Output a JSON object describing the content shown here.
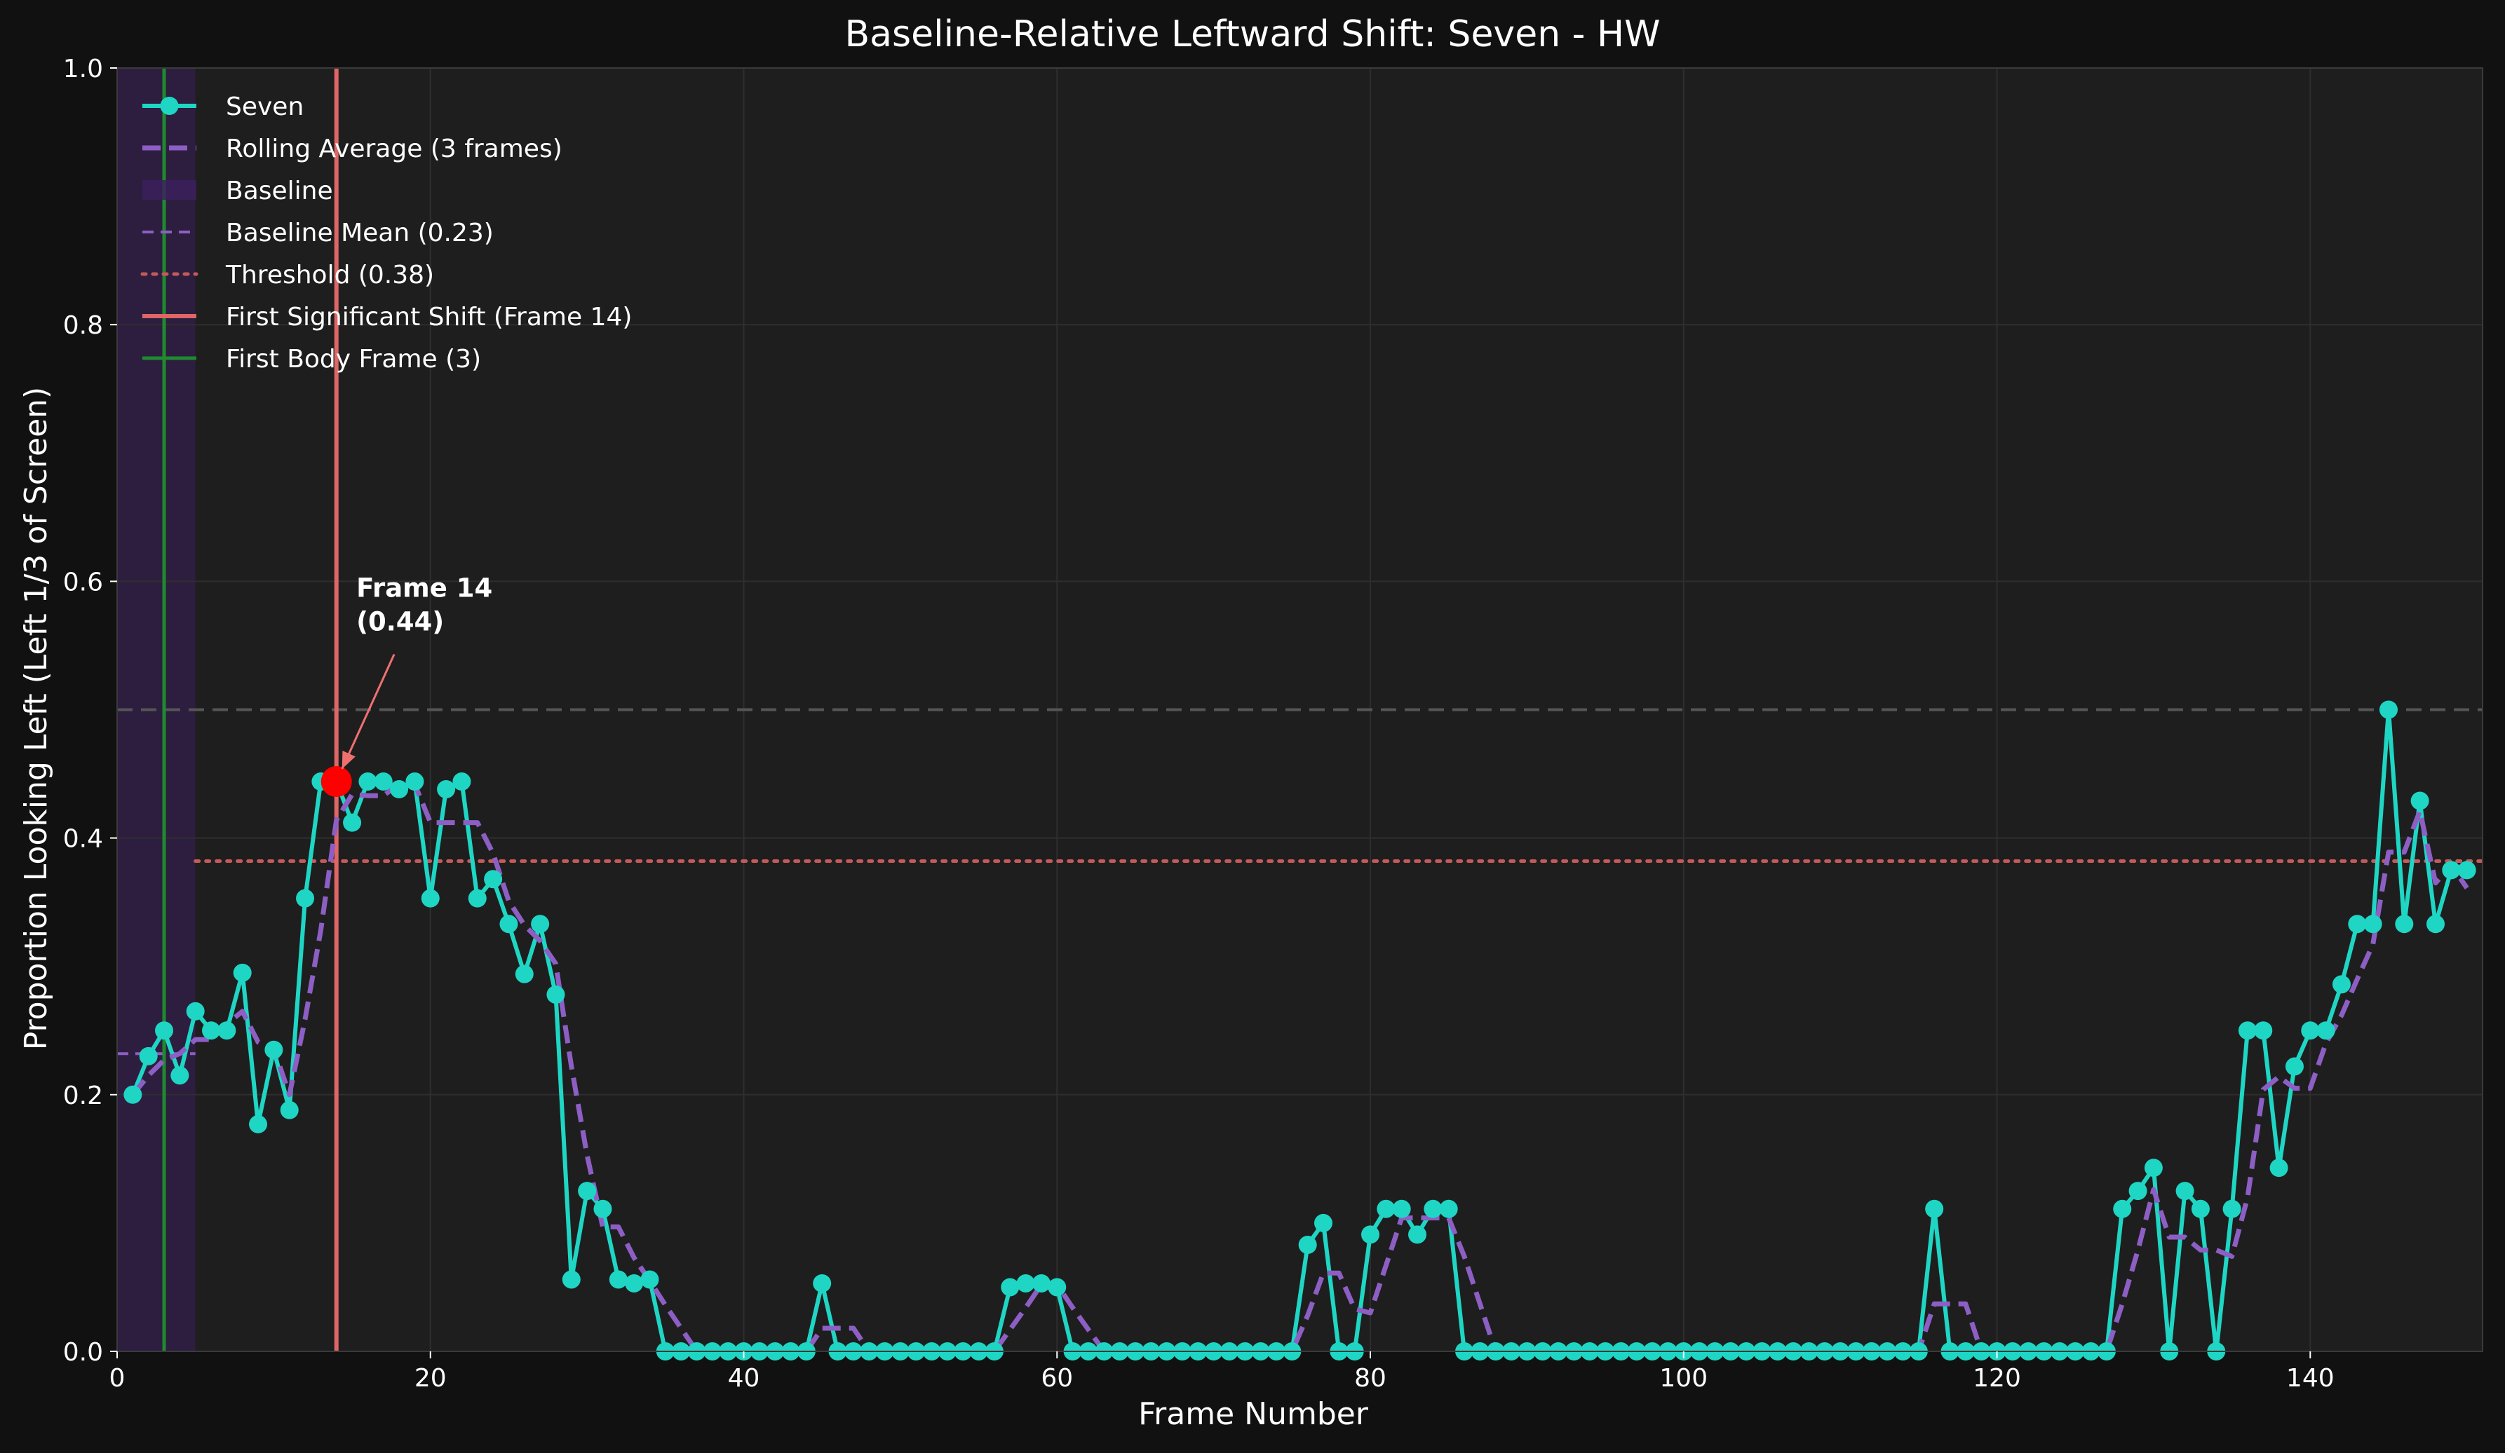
{
  "chart_data": {
    "type": "line",
    "title": "Baseline-Relative Leftward Shift: Seven - HW",
    "xlabel": "Frame Number",
    "ylabel": "Proportion Looking Left (Left 1/3 of Screen)",
    "xlim": [
      0,
      151
    ],
    "ylim": [
      0,
      1.0
    ],
    "xticks": [
      0,
      20,
      40,
      60,
      80,
      100,
      120,
      140
    ],
    "yticks": [
      0.0,
      0.2,
      0.4,
      0.6,
      0.8,
      1.0
    ],
    "x_tick_labels": [
      "0",
      "20",
      "40",
      "60",
      "80",
      "100",
      "120",
      "140"
    ],
    "y_tick_labels": [
      "0.0",
      "0.2",
      "0.4",
      "0.6",
      "0.8",
      "1.0"
    ],
    "grid": true,
    "legend_position": "top-left",
    "x": [
      1,
      2,
      3,
      4,
      5,
      6,
      7,
      8,
      9,
      10,
      11,
      12,
      13,
      14,
      15,
      16,
      17,
      18,
      19,
      20,
      21,
      22,
      23,
      24,
      25,
      26,
      27,
      28,
      29,
      30,
      31,
      32,
      33,
      34,
      35,
      36,
      37,
      38,
      39,
      40,
      41,
      42,
      43,
      44,
      45,
      46,
      47,
      48,
      49,
      50,
      51,
      52,
      53,
      54,
      55,
      56,
      57,
      58,
      59,
      60,
      61,
      62,
      63,
      64,
      65,
      66,
      67,
      68,
      69,
      70,
      71,
      72,
      73,
      74,
      75,
      76,
      77,
      78,
      79,
      80,
      81,
      82,
      83,
      84,
      85,
      86,
      87,
      88,
      89,
      90,
      91,
      92,
      93,
      94,
      95,
      96,
      97,
      98,
      99,
      100,
      101,
      102,
      103,
      104,
      105,
      106,
      107,
      108,
      109,
      110,
      111,
      112,
      113,
      114,
      115,
      116,
      117,
      118,
      119,
      120,
      121,
      122,
      123,
      124,
      125,
      126,
      127,
      128,
      129,
      130,
      131,
      132,
      133,
      134,
      135,
      136,
      137,
      138,
      139,
      140,
      141,
      142,
      143,
      144,
      145,
      146,
      147,
      148,
      149,
      150
    ],
    "series": [
      {
        "name": "Seven",
        "color": "#1fd6c4",
        "style": "solid-markers",
        "values": [
          0.2,
          0.23,
          0.25,
          0.215,
          0.265,
          0.25,
          0.25,
          0.295,
          0.177,
          0.235,
          0.188,
          0.353,
          0.444,
          0.444,
          0.412,
          0.444,
          0.444,
          0.438,
          0.444,
          0.353,
          0.438,
          0.444,
          0.353,
          0.368,
          0.333,
          0.294,
          0.333,
          0.278,
          0.056,
          0.125,
          0.111,
          0.056,
          0.053,
          0.056,
          0,
          0,
          0,
          0,
          0,
          0,
          0,
          0,
          0,
          0,
          0.053,
          0,
          0,
          0,
          0,
          0,
          0,
          0,
          0,
          0,
          0,
          0,
          0.05,
          0.053,
          0.053,
          0.05,
          0,
          0,
          0,
          0,
          0,
          0,
          0,
          0,
          0,
          0,
          0,
          0,
          0,
          0,
          0,
          0.083,
          0.1,
          0,
          0,
          0.091,
          0.111,
          0.111,
          0.091,
          0.111,
          0.111,
          0,
          0,
          0,
          0,
          0,
          0,
          0,
          0,
          0,
          0,
          0,
          0,
          0,
          0,
          0,
          0,
          0,
          0,
          0,
          0,
          0,
          0,
          0,
          0,
          0,
          0,
          0,
          0,
          0,
          0,
          0.111,
          0,
          0,
          0,
          0,
          0,
          0,
          0,
          0,
          0,
          0,
          0,
          0.111,
          0.125,
          0.143,
          0,
          0.125,
          0.111,
          0,
          0.111,
          0.25,
          0.25,
          0.143,
          0.222,
          0.25,
          0.25,
          0.286,
          0.333,
          0.333,
          0.5,
          0.333,
          0.429,
          0.333,
          0.375,
          0.375
        ]
      },
      {
        "name": "Rolling Average (3 frames)",
        "color": "#8d5fc4",
        "style": "dashed",
        "values": [
          0.2,
          0.215,
          0.227,
          0.232,
          0.243,
          0.243,
          0.255,
          0.265,
          0.241,
          0.236,
          0.2,
          0.259,
          0.328,
          0.414,
          0.434,
          0.433,
          0.433,
          0.442,
          0.442,
          0.412,
          0.412,
          0.412,
          0.412,
          0.388,
          0.351,
          0.332,
          0.32,
          0.302,
          0.222,
          0.153,
          0.097,
          0.097,
          0.073,
          0.055,
          0.036,
          0.018,
          0,
          0,
          0,
          0,
          0,
          0,
          0,
          0,
          0.018,
          0.018,
          0.018,
          0,
          0,
          0,
          0,
          0,
          0,
          0,
          0,
          0,
          0.017,
          0.034,
          0.052,
          0.052,
          0.034,
          0.017,
          0,
          0,
          0,
          0,
          0,
          0,
          0,
          0,
          0,
          0,
          0,
          0,
          0,
          0.028,
          0.061,
          0.061,
          0.033,
          0.03,
          0.067,
          0.104,
          0.104,
          0.104,
          0.104,
          0.074,
          0.037,
          0,
          0,
          0,
          0,
          0,
          0,
          0,
          0,
          0,
          0,
          0,
          0,
          0,
          0,
          0,
          0,
          0,
          0,
          0,
          0,
          0,
          0,
          0,
          0,
          0,
          0,
          0,
          0,
          0.037,
          0.037,
          0.037,
          0,
          0,
          0,
          0,
          0,
          0,
          0,
          0,
          0,
          0.037,
          0.079,
          0.126,
          0.089,
          0.089,
          0.079,
          0.079,
          0.074,
          0.12,
          0.204,
          0.214,
          0.205,
          0.205,
          0.24,
          0.262,
          0.29,
          0.317,
          0.389,
          0.389,
          0.421,
          0.365,
          0.379,
          0.361
        ]
      }
    ],
    "baseline": {
      "label": "Baseline",
      "color": "#3b1f5c",
      "x_range": [
        0,
        5
      ]
    },
    "baseline_mean": {
      "label": "Baseline Mean (0.23)",
      "value": 0.232,
      "color": "#8d5fc4",
      "x_range": [
        0,
        5
      ]
    },
    "threshold": {
      "label": "Threshold (0.38)",
      "value": 0.382,
      "color": "#c45a5a",
      "x_range": [
        5,
        151
      ]
    },
    "reference_line": {
      "value": 0.5,
      "color": "#555555"
    },
    "first_shift": {
      "label": "First Significant Shift (Frame 14)",
      "frame": 14,
      "value": 0.444,
      "color": "#e06666"
    },
    "first_body": {
      "label": "First Body Frame (3)",
      "frame": 3,
      "color": "#1f8a2e"
    },
    "annotation": {
      "line1": "Frame 14",
      "line2": "(0.44)",
      "x": 15,
      "y": 0.565
    }
  }
}
